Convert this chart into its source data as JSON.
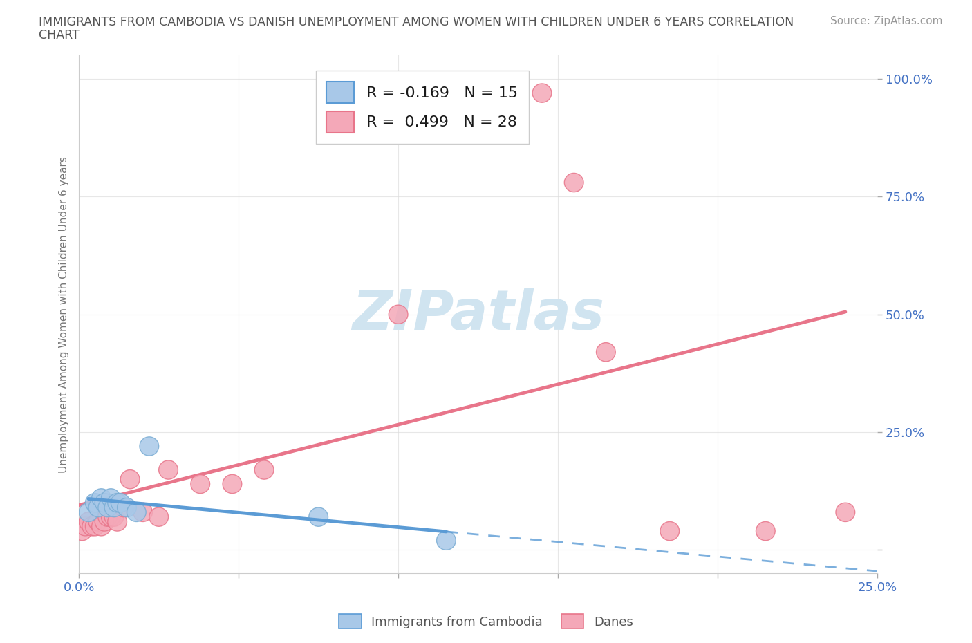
{
  "title_line1": "IMMIGRANTS FROM CAMBODIA VS DANISH UNEMPLOYMENT AMONG WOMEN WITH CHILDREN UNDER 6 YEARS CORRELATION",
  "title_line2": "CHART",
  "source": "Source: ZipAtlas.com",
  "ylabel": "Unemployment Among Women with Children Under 6 years",
  "xlim": [
    0.0,
    0.25
  ],
  "ylim": [
    -0.05,
    1.05
  ],
  "xticks": [
    0.0,
    0.05,
    0.1,
    0.15,
    0.2,
    0.25
  ],
  "xticklabels": [
    "0.0%",
    "",
    "",
    "",
    "",
    "25.0%"
  ],
  "yticks": [
    0.0,
    0.25,
    0.5,
    0.75,
    1.0
  ],
  "yticklabels": [
    "",
    "25.0%",
    "50.0%",
    "75.0%",
    "100.0%"
  ],
  "blue_R": -0.169,
  "blue_N": 15,
  "pink_R": 0.499,
  "pink_N": 28,
  "blue_scatter_x": [
    0.003,
    0.005,
    0.006,
    0.007,
    0.008,
    0.009,
    0.01,
    0.011,
    0.012,
    0.013,
    0.015,
    0.018,
    0.022,
    0.075,
    0.115
  ],
  "blue_scatter_y": [
    0.08,
    0.1,
    0.09,
    0.11,
    0.1,
    0.09,
    0.11,
    0.09,
    0.1,
    0.1,
    0.09,
    0.08,
    0.22,
    0.07,
    0.02
  ],
  "pink_scatter_x": [
    0.001,
    0.002,
    0.003,
    0.004,
    0.005,
    0.006,
    0.007,
    0.008,
    0.009,
    0.01,
    0.011,
    0.012,
    0.014,
    0.016,
    0.02,
    0.025,
    0.028,
    0.038,
    0.048,
    0.058,
    0.1,
    0.13,
    0.145,
    0.155,
    0.165,
    0.185,
    0.215,
    0.24
  ],
  "pink_scatter_y": [
    0.04,
    0.05,
    0.06,
    0.05,
    0.05,
    0.06,
    0.05,
    0.06,
    0.07,
    0.07,
    0.07,
    0.06,
    0.09,
    0.15,
    0.08,
    0.07,
    0.17,
    0.14,
    0.14,
    0.17,
    0.5,
    0.97,
    0.97,
    0.78,
    0.42,
    0.04,
    0.04,
    0.08
  ],
  "blue_line_color": "#5b9bd5",
  "pink_line_color": "#e8758a",
  "blue_marker_face": "#a8c8e8",
  "blue_marker_edge": "#7aadd4",
  "pink_marker_face": "#f4a8b8",
  "pink_marker_edge": "#e8758a",
  "watermark_color": "#d0e4f0",
  "legend_label_blue": "Immigrants from Cambodia",
  "legend_label_pink": "Danes",
  "background_color": "#ffffff",
  "grid_color": "#dddddd",
  "tick_color": "#4472c4",
  "ylabel_color": "#777777",
  "title_color": "#555555",
  "source_color": "#999999"
}
